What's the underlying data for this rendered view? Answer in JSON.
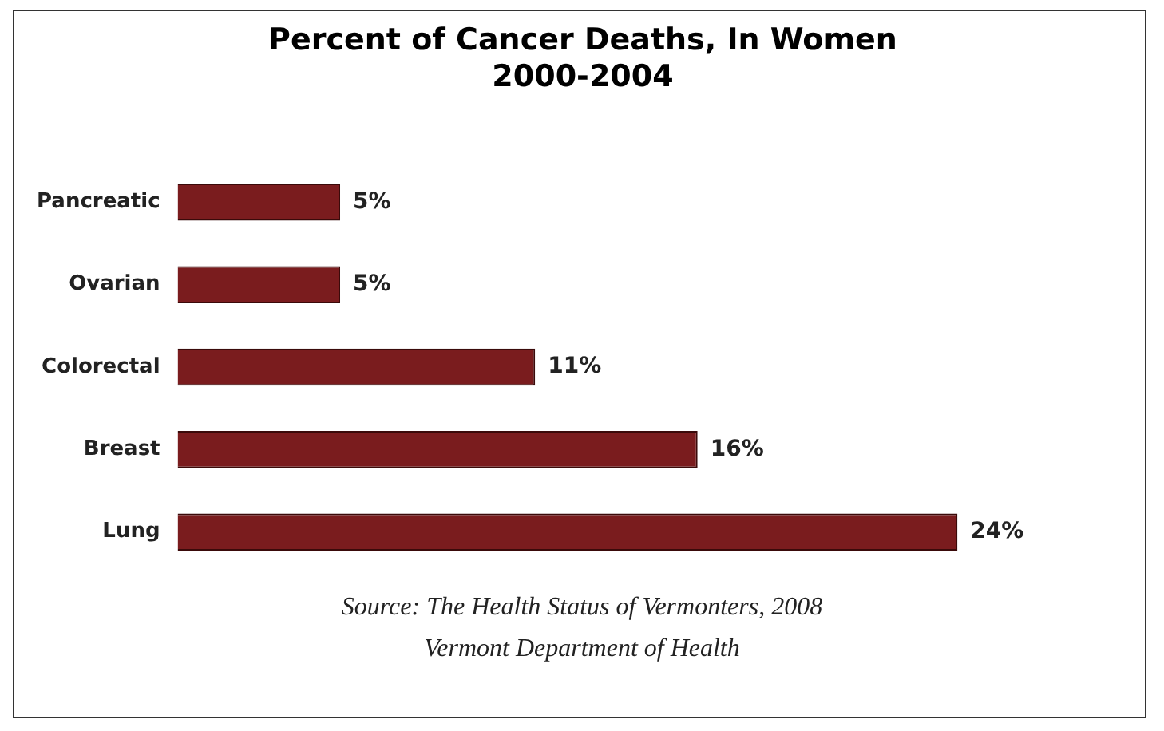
{
  "chart_data": {
    "type": "bar",
    "orientation": "horizontal",
    "title": "Percent of Cancer Deaths, In Women 2000-2004",
    "categories": [
      "Pancreatic",
      "Ovarian",
      "Colorectal",
      "Breast",
      "Lung"
    ],
    "values": [
      5,
      5,
      11,
      16,
      24
    ],
    "value_labels": [
      "5%",
      "5%",
      "11%",
      "16%",
      "24%"
    ],
    "color": "#7a1c1e",
    "legend": false,
    "tick_labels": "y",
    "annotations": [
      "Source:  The Health Status of Vermonters, 2008",
      "Vermont Department of Health"
    ]
  }
}
